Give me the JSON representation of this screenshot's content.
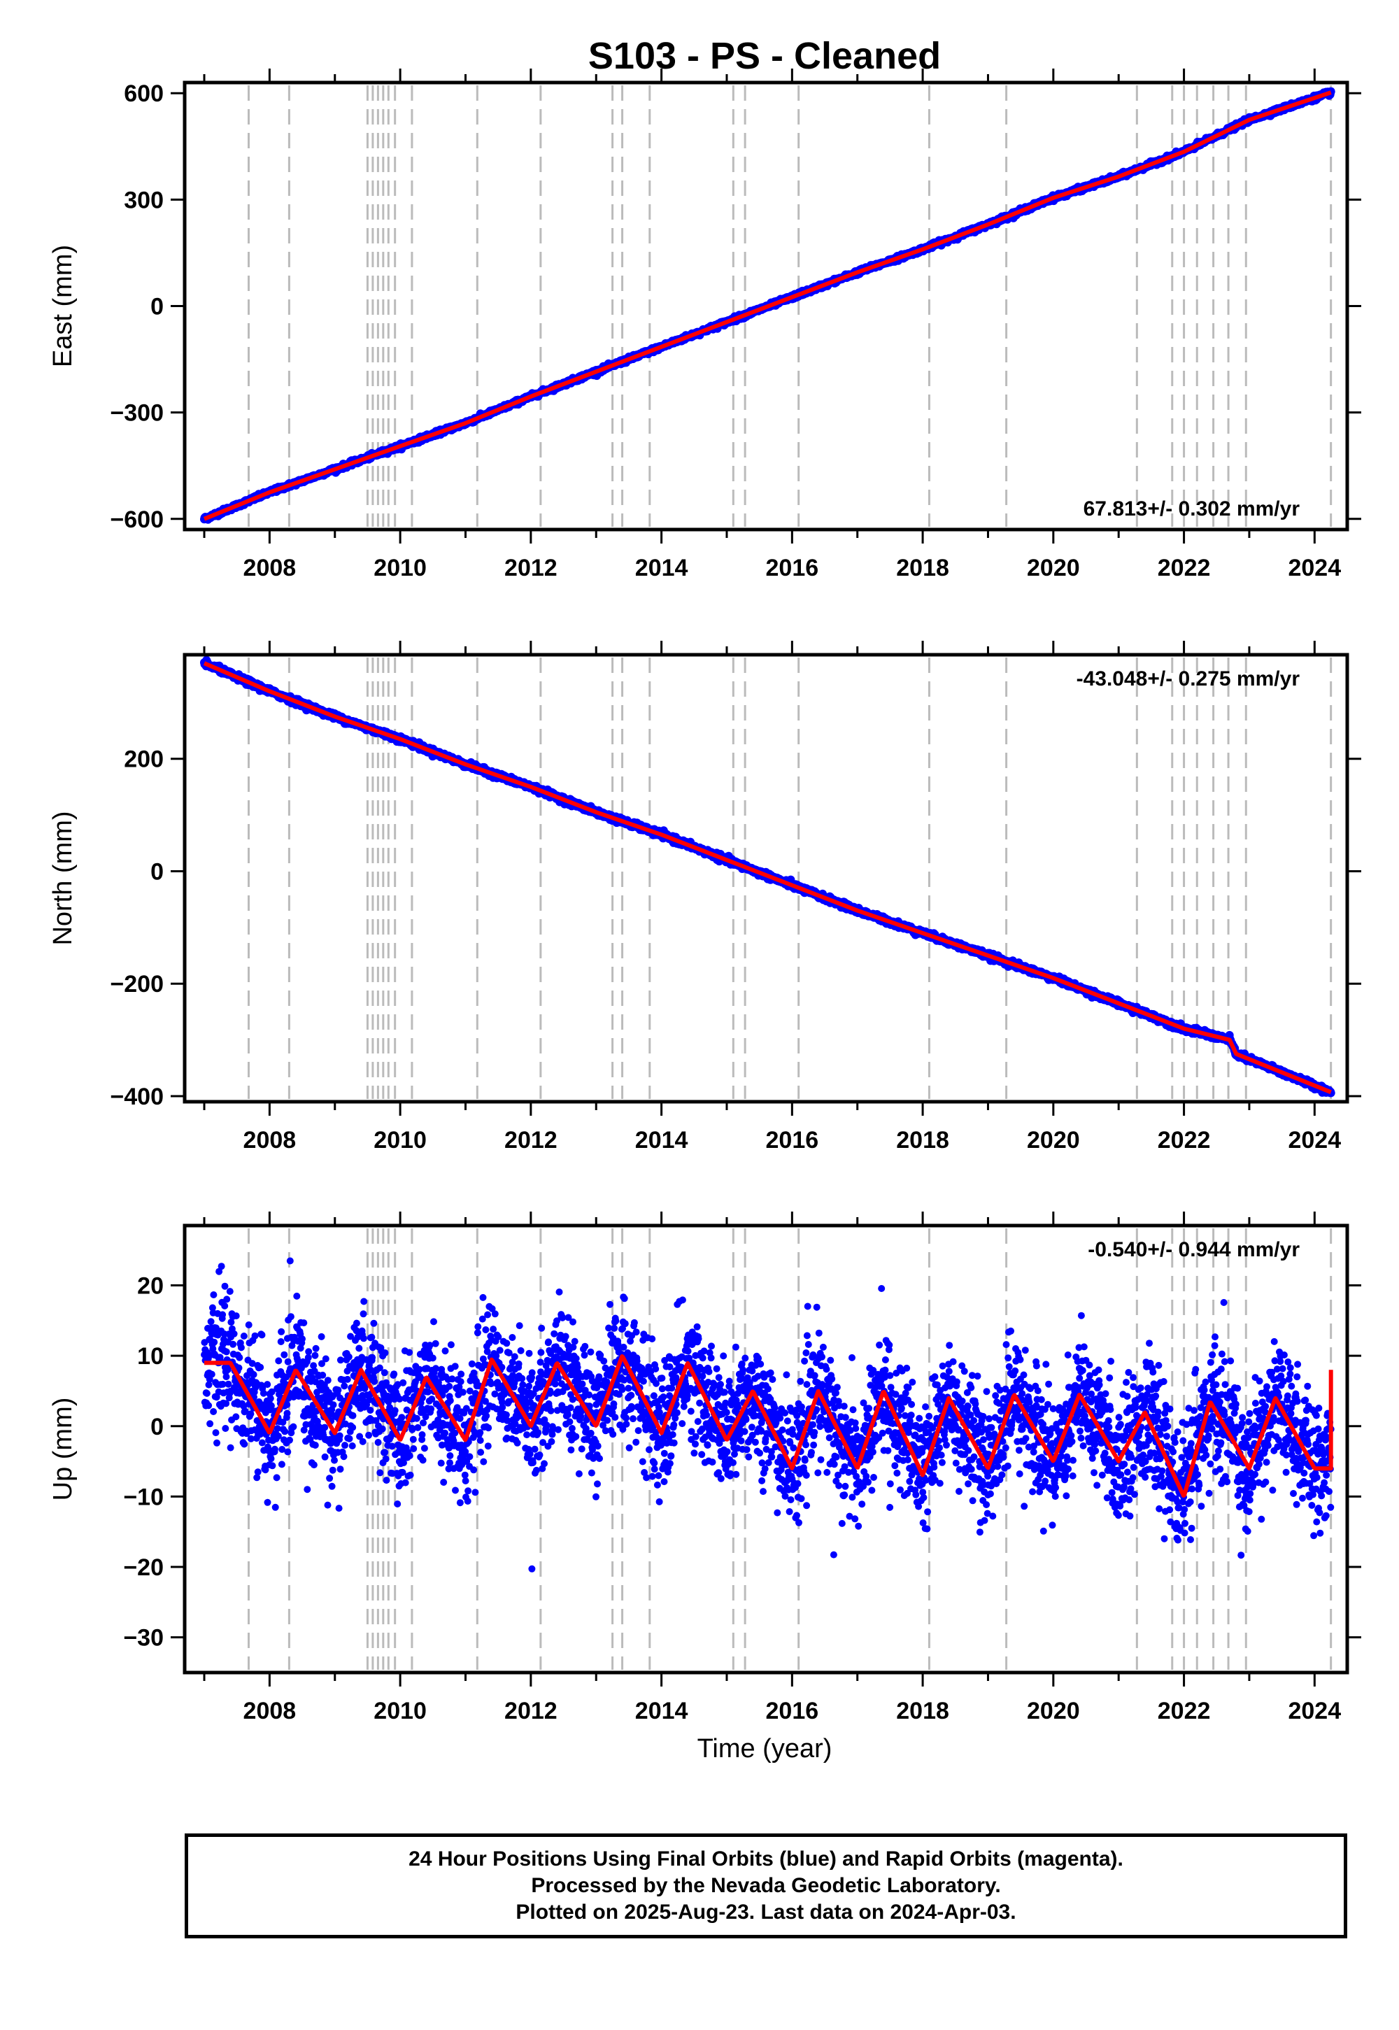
{
  "title": "S103  - PS - Cleaned",
  "xlabel": "Time (year)",
  "caption": {
    "line1": "24 Hour Positions Using Final Orbits (blue) and Rapid Orbits (magenta).",
    "line2": "Processed by the Nevada Geodetic Laboratory.",
    "line3": "Plotted on 2025-Aug-23. Last data on 2024-Apr-03."
  },
  "colors": {
    "data": "#0000ff",
    "fit": "#ff0000",
    "event_lines": "#bbbbbb"
  },
  "chart_data": [
    {
      "type": "scatter",
      "name": "east",
      "ylabel": "East (mm)",
      "rate_label": "67.813+/- 0.302 mm/yr",
      "xlim": [
        2006.7,
        2024.5
      ],
      "ylim": [
        -630,
        630
      ],
      "yticks": [
        -600,
        -300,
        0,
        300,
        600
      ],
      "ytick_labels": [
        "−600",
        "−300",
        "0",
        "300",
        "600"
      ],
      "xticks": [
        2008,
        2010,
        2012,
        2014,
        2016,
        2018,
        2020,
        2022,
        2024
      ],
      "series": [
        {
          "x": [
            2007.0,
            2008.0,
            2009.0,
            2010.0,
            2011.0,
            2012.0,
            2013.0,
            2014.0,
            2015.0,
            2016.0,
            2017.0,
            2018.0,
            2019.0,
            2020.0,
            2021.0,
            2022.0,
            2023.0,
            2024.25
          ],
          "y": [
            -600,
            -525,
            -460,
            -395,
            -330,
            -255,
            -185,
            -115,
            -45,
            25,
            95,
            160,
            230,
            305,
            365,
            435,
            525,
            602
          ]
        }
      ],
      "fit": {
        "x0": 2007.0,
        "x1": 2024.25,
        "y0": -600,
        "y1": 602
      }
    },
    {
      "type": "scatter",
      "name": "north",
      "ylabel": "North (mm)",
      "rate_label": "-43.048+/- 0.275 mm/yr",
      "xlim": [
        2006.7,
        2024.5
      ],
      "ylim": [
        -410,
        385
      ],
      "yticks": [
        -400,
        -200,
        0,
        200
      ],
      "ytick_labels": [
        "−400",
        "−200",
        "0",
        "200"
      ],
      "xticks": [
        2008,
        2010,
        2012,
        2014,
        2016,
        2018,
        2020,
        2022,
        2024
      ],
      "series": [
        {
          "x": [
            2007.0,
            2008.0,
            2009.0,
            2010.0,
            2011.0,
            2012.0,
            2013.0,
            2014.0,
            2015.0,
            2016.0,
            2017.0,
            2018.0,
            2019.0,
            2020.0,
            2021.0,
            2022.0,
            2022.7,
            2022.8,
            2024.25
          ],
          "y": [
            370,
            320,
            275,
            235,
            190,
            150,
            105,
            65,
            20,
            -25,
            -70,
            -110,
            -150,
            -190,
            -235,
            -280,
            -300,
            -325,
            -393
          ]
        }
      ],
      "fit": {
        "x0": 2007.0,
        "x1": 2024.25,
        "y0": 370,
        "y1": -393
      }
    },
    {
      "type": "scatter",
      "name": "up",
      "ylabel": "Up (mm)",
      "rate_label": "-0.540+/- 0.944 mm/yr",
      "xlim": [
        2006.7,
        2024.5
      ],
      "ylim": [
        -35,
        28.5
      ],
      "yticks": [
        -30,
        -20,
        -10,
        0,
        10,
        20
      ],
      "ytick_labels": [
        "−30",
        "−20",
        "−10",
        "0",
        "10",
        "20"
      ],
      "xticks": [
        2008,
        2010,
        2012,
        2014,
        2016,
        2018,
        2020,
        2022,
        2024
      ],
      "series": [
        {
          "x": [
            2007.4,
            2008.0,
            2008.4,
            2009.0,
            2009.4,
            2010.0,
            2010.4,
            2011.0,
            2011.4,
            2012.0,
            2012.4,
            2013.0,
            2013.4,
            2014.0,
            2014.4,
            2015.0,
            2015.4,
            2016.0,
            2016.4,
            2017.0,
            2017.4,
            2018.0,
            2018.4,
            2019.0,
            2019.4,
            2020.0,
            2020.4,
            2021.0,
            2021.4,
            2022.0,
            2022.4,
            2023.0,
            2023.4,
            2024.0
          ],
          "y": [
            9,
            -1,
            8,
            -1,
            8,
            -2,
            7,
            -2,
            9.5,
            0,
            9,
            0,
            10,
            -1,
            9,
            -2,
            5,
            -6,
            5,
            -6,
            5,
            -7,
            4,
            -6,
            4.5,
            -5,
            4.5,
            -5,
            2,
            -10,
            3.5,
            -6,
            4,
            -6
          ]
        }
      ],
      "fit": {
        "seasonal": true
      }
    }
  ],
  "event_lines": [
    2007.68,
    2008.3,
    2009.5,
    2009.58,
    2009.66,
    2009.74,
    2009.82,
    2009.92,
    2010.18,
    2011.18,
    2012.15,
    2013.25,
    2013.4,
    2013.82,
    2015.1,
    2015.28,
    2016.1,
    2018.1,
    2019.28,
    2021.28,
    2021.82,
    2022.0,
    2022.2,
    2022.45,
    2022.68,
    2022.95,
    2024.25
  ]
}
